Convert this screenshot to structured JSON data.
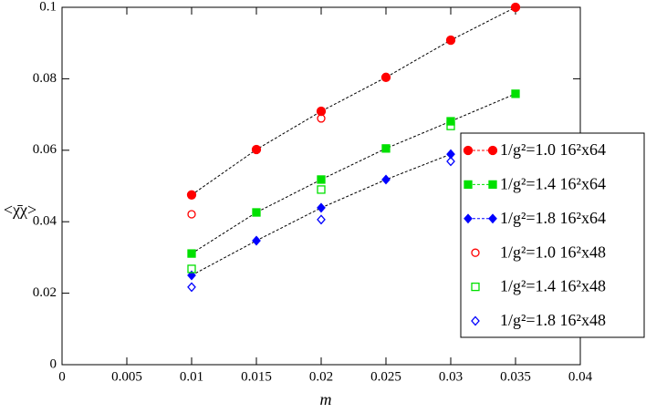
{
  "chart_data": {
    "type": "scatter",
    "x_label": "m",
    "y_label": "<χ̄χ>",
    "xlim": [
      0,
      0.04
    ],
    "ylim": [
      0,
      0.1
    ],
    "xticks": [
      0,
      0.005,
      0.01,
      0.015,
      0.02,
      0.025,
      0.03,
      0.035,
      0.04
    ],
    "yticks": [
      0,
      0.02,
      0.04,
      0.06,
      0.08,
      0.1
    ],
    "legend": "right",
    "series": [
      {
        "name": "1/g²=1.0 16²x64",
        "color": "#ff0000",
        "marker": "circle",
        "filled": true,
        "line": "dashed",
        "x": [
          0.01,
          0.015,
          0.02,
          0.025,
          0.03,
          0.035
        ],
        "values": [
          0.0475,
          0.0602,
          0.0709,
          0.0804,
          0.0908,
          0.1
        ]
      },
      {
        "name": "1/g²=1.4 16²x64",
        "color": "#00e000",
        "marker": "square",
        "filled": true,
        "line": "dashed",
        "x": [
          0.01,
          0.015,
          0.02,
          0.025,
          0.03,
          0.035
        ],
        "values": [
          0.0311,
          0.0426,
          0.0518,
          0.0605,
          0.0681,
          0.0758
        ]
      },
      {
        "name": "1/g²=1.8 16²x64",
        "color": "#0000ff",
        "marker": "diamond",
        "filled": true,
        "line": "dashed",
        "x": [
          0.01,
          0.015,
          0.02,
          0.025,
          0.03
        ],
        "values": [
          0.025,
          0.0347,
          0.0439,
          0.0518,
          0.0589
        ]
      },
      {
        "name": "1/g²=1.0 16²x48",
        "color": "#ff0000",
        "marker": "circle",
        "filled": false,
        "line": "none",
        "x": [
          0.01,
          0.02,
          0.03
        ],
        "values": [
          0.0421,
          0.0689,
          0.0908
        ]
      },
      {
        "name": "1/g²=1.4 16²x48",
        "color": "#00e000",
        "marker": "square",
        "filled": false,
        "line": "none",
        "x": [
          0.01,
          0.02,
          0.03
        ],
        "values": [
          0.0268,
          0.049,
          0.0668
        ]
      },
      {
        "name": "1/g²=1.8 16²x48",
        "color": "#0000ff",
        "marker": "diamond",
        "filled": false,
        "line": "none",
        "x": [
          0.01,
          0.02,
          0.03
        ],
        "values": [
          0.0217,
          0.0406,
          0.0569
        ]
      }
    ]
  }
}
